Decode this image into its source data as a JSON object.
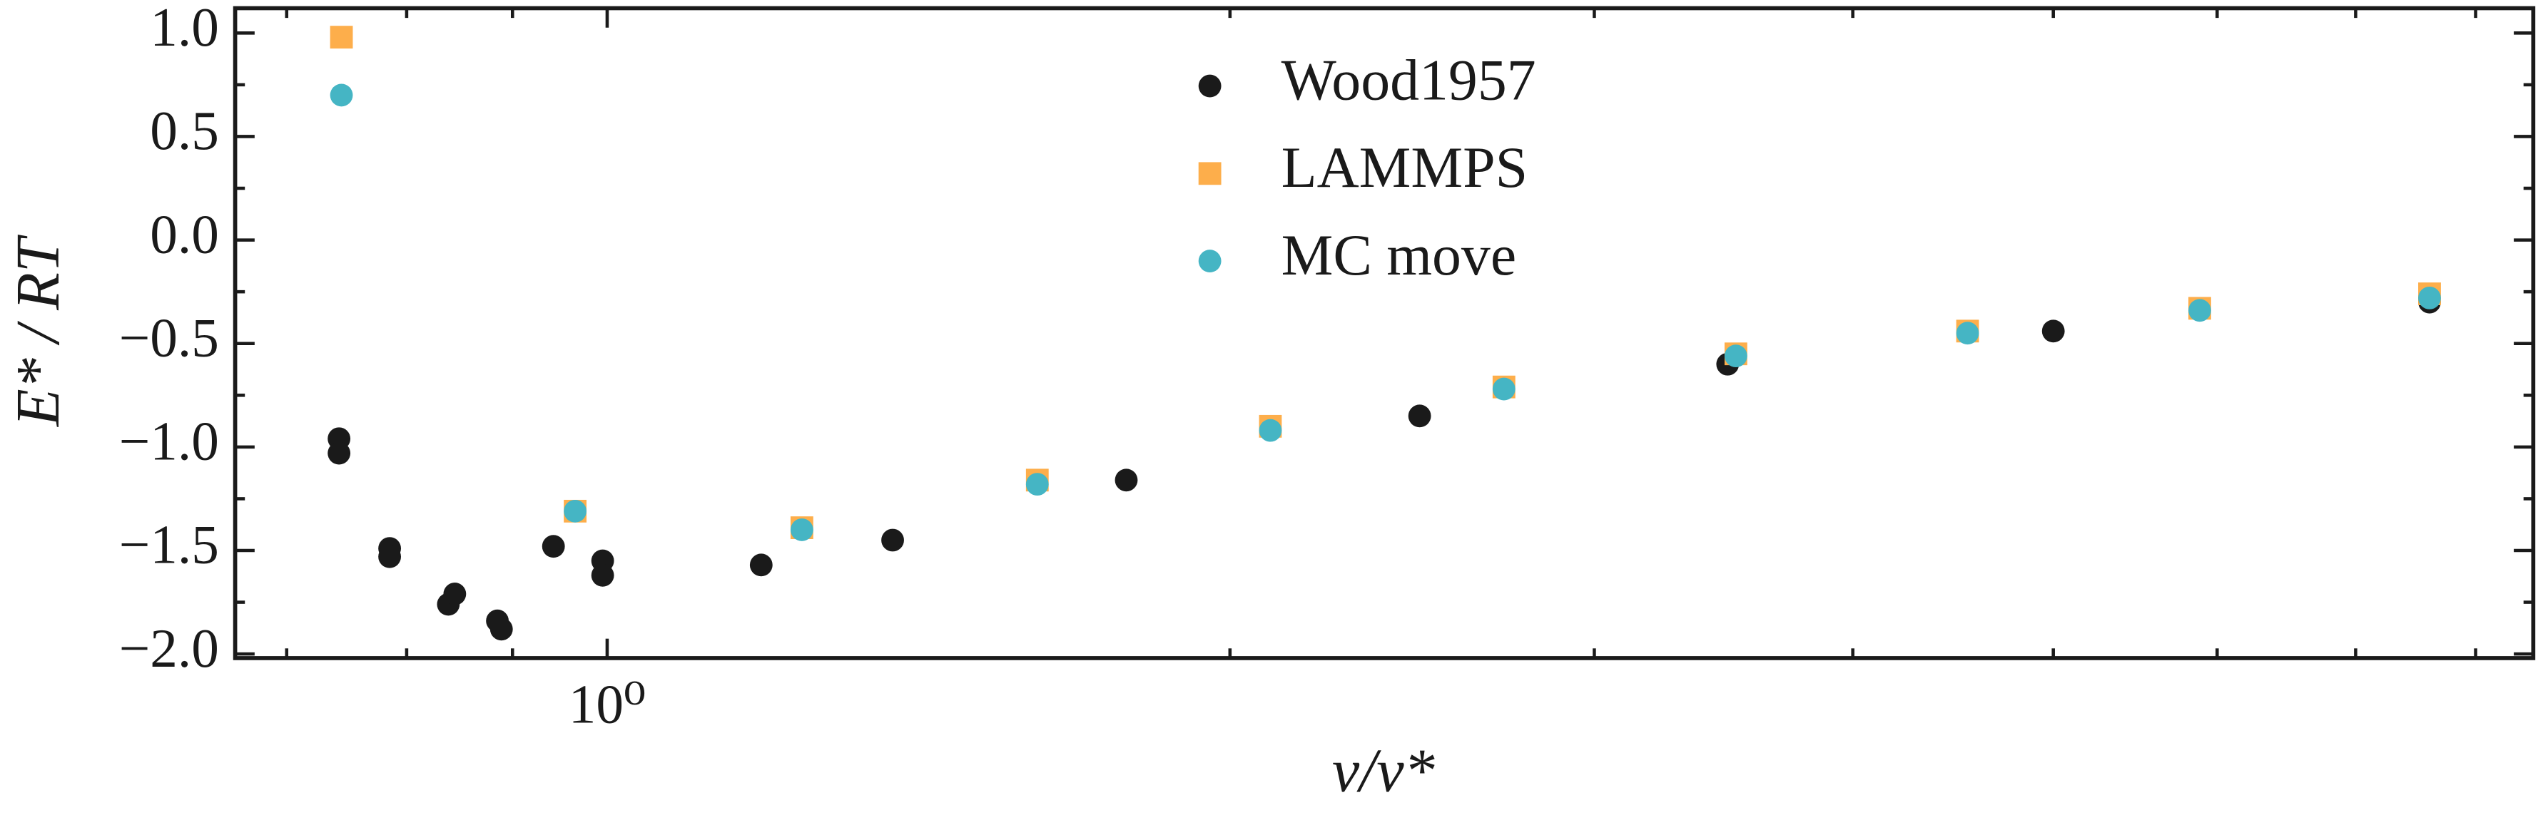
{
  "chart_data": {
    "type": "scatter",
    "x_label": "v/v*",
    "y_label": "E* / RT",
    "xscale": "log",
    "xlim": [
      0.661,
      8.53
    ],
    "ylim": [
      -2.02,
      1.12
    ],
    "xticks": [
      {
        "value": 1,
        "label": "10⁰"
      }
    ],
    "xminorticks": [
      0.7,
      0.8,
      0.9,
      2,
      3,
      4,
      5,
      6,
      7,
      8
    ],
    "yticks": [
      {
        "value": 1.0,
        "label": "1.0"
      },
      {
        "value": 0.5,
        "label": "0.5"
      },
      {
        "value": 0.0,
        "label": "0.0"
      },
      {
        "value": -0.5,
        "label": "−0.5"
      },
      {
        "value": -1.0,
        "label": "−1.0"
      },
      {
        "value": -1.5,
        "label": "−1.5"
      },
      {
        "value": -2.0,
        "label": "−2.0"
      }
    ],
    "yminorticks": [
      0.75,
      0.25,
      -0.25,
      -0.75,
      -1.25,
      -1.75
    ],
    "legend": "upper center",
    "series": [
      {
        "name": "Wood1957",
        "color": "#1a1a1a",
        "marker": "circle",
        "x": [
          0.742,
          0.742,
          0.785,
          0.785,
          0.838,
          0.844,
          0.885,
          0.889,
          0.942,
          0.995,
          0.995,
          1.187,
          1.374,
          1.782,
          2.47,
          3.48,
          5.0,
          7.6
        ],
        "values": [
          -0.96,
          -1.03,
          -1.49,
          -1.53,
          -1.76,
          -1.71,
          -1.84,
          -1.88,
          -1.48,
          -1.55,
          -1.62,
          -1.57,
          -1.45,
          -1.16,
          -0.85,
          -0.6,
          -0.44,
          -0.3
        ]
      },
      {
        "name": "LAMMPS",
        "color": "#fdae4b",
        "marker": "square",
        "x": [
          0.744,
          0.965,
          1.242,
          1.614,
          2.092,
          2.713,
          3.512,
          4.545,
          5.885,
          7.6
        ],
        "values": [
          0.98,
          -1.31,
          -1.39,
          -1.16,
          -0.9,
          -0.71,
          -0.55,
          -0.44,
          -0.33,
          -0.26
        ]
      },
      {
        "name": "MC move",
        "color": "#45b5c4",
        "marker": "circle",
        "x": [
          0.744,
          0.965,
          1.242,
          1.614,
          2.092,
          2.713,
          3.512,
          4.545,
          5.885,
          7.6
        ],
        "values": [
          0.7,
          -1.31,
          -1.4,
          -1.18,
          -0.92,
          -0.72,
          -0.56,
          -0.45,
          -0.34,
          -0.28
        ]
      }
    ]
  }
}
